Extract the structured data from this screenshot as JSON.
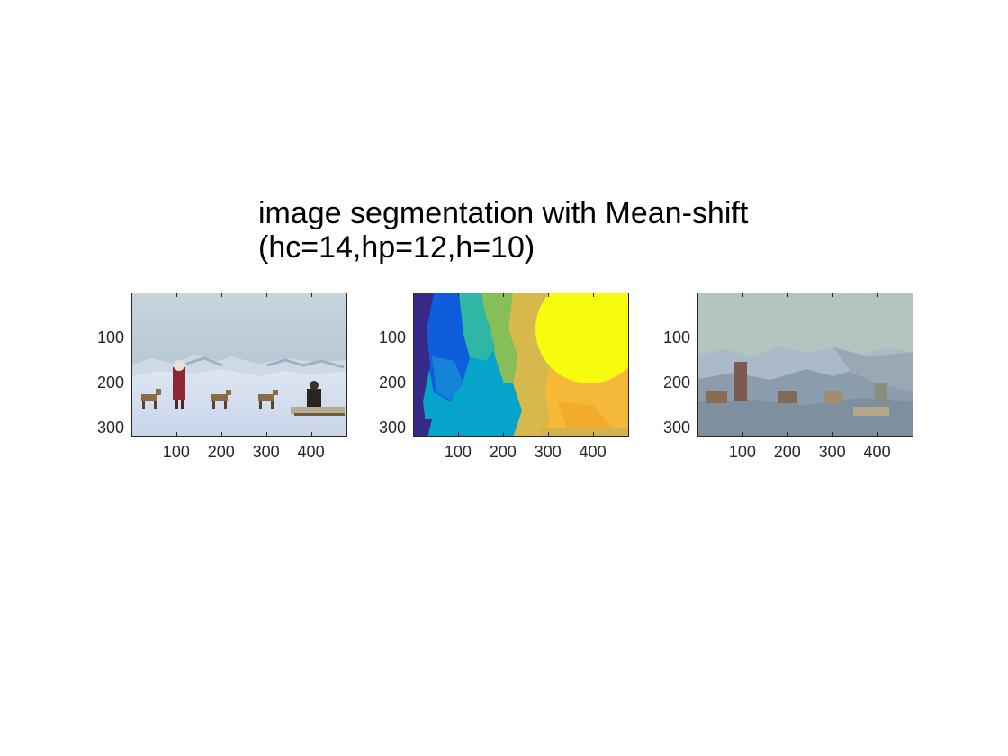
{
  "figure": {
    "title_line1": "image segmentation with Mean-shift",
    "title_line2": "(hc=14,hp=12,h=10)"
  },
  "panels": [
    {
      "name": "original-image",
      "yticks": [
        "100",
        "200",
        "300"
      ],
      "xticks": [
        "100",
        "200",
        "300",
        "400"
      ]
    },
    {
      "name": "segment-label-map",
      "yticks": [
        "100",
        "200",
        "300"
      ],
      "xticks": [
        "100",
        "200",
        "300",
        "400"
      ]
    },
    {
      "name": "segmented-image",
      "yticks": [
        "100",
        "200",
        "300"
      ],
      "xticks": [
        "100",
        "200",
        "300",
        "400"
      ]
    }
  ],
  "colors": {
    "axis": "#262626",
    "parula_dark": "#352a87",
    "parula_blue": "#0f5cdd",
    "parula_cyan": "#06a4ca",
    "parula_teal": "#2eb7a4",
    "parula_green": "#86bf58",
    "parula_orange": "#f5b93a",
    "parula_yellow": "#f9fb0e"
  }
}
